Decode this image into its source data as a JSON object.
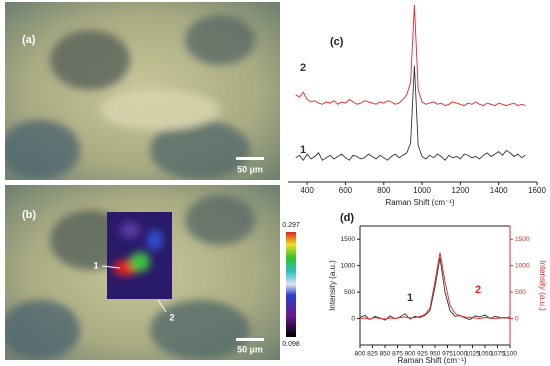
{
  "panels": [
    {
      "label": "(a)",
      "scale_bar": "50 µm"
    },
    {
      "label": "(b)",
      "scale_bar": "50 µm",
      "markers": [
        "1",
        "2"
      ],
      "colorbar": {
        "max": 0.297,
        "min": 0.098
      }
    }
  ],
  "chart_data": [
    {
      "type": "line",
      "panel": "(c)",
      "x_label": "Raman Shift (cm⁻¹)",
      "x": [
        340,
        360,
        380,
        400,
        420,
        440,
        460,
        480,
        500,
        520,
        540,
        560,
        580,
        600,
        620,
        640,
        660,
        680,
        700,
        720,
        740,
        760,
        780,
        800,
        820,
        840,
        860,
        880,
        900,
        920,
        940,
        960,
        980,
        1000,
        1020,
        1040,
        1060,
        1080,
        1100,
        1120,
        1140,
        1160,
        1180,
        1200,
        1220,
        1240,
        1260,
        1280,
        1300,
        1320,
        1340,
        1360,
        1380,
        1400,
        1420,
        1440,
        1460,
        1480,
        1500,
        1520,
        1540
      ],
      "xlim": [
        300,
        1600
      ],
      "xticks": [
        400,
        600,
        800,
        1000,
        1200,
        1400,
        1600
      ],
      "ylim": [
        0,
        150
      ],
      "series": [
        {
          "name": "1",
          "color": "#333333",
          "values": [
            20,
            22,
            18,
            23,
            19,
            21,
            24,
            18,
            20,
            22,
            19,
            21,
            23,
            20,
            18,
            22,
            21,
            19,
            20,
            23,
            21,
            19,
            22,
            20,
            18,
            21,
            23,
            20,
            22,
            24,
            32,
            96,
            30,
            21,
            19,
            22,
            20,
            23,
            21,
            18,
            22,
            20,
            21,
            19,
            23,
            22,
            20,
            21,
            19,
            22,
            24,
            21,
            23,
            25,
            22,
            26,
            24,
            21,
            23,
            20,
            22
          ]
        },
        {
          "name": "2",
          "color": "#e8262a",
          "values": [
            72,
            70,
            74,
            68,
            66,
            67,
            65,
            64,
            66,
            65,
            67,
            64,
            66,
            65,
            68,
            66,
            64,
            65,
            67,
            66,
            65,
            64,
            66,
            65,
            67,
            66,
            64,
            65,
            68,
            72,
            82,
            146,
            76,
            66,
            64,
            65,
            66,
            64,
            65,
            63,
            64,
            66,
            65,
            64,
            63,
            65,
            64,
            66,
            64,
            63,
            65,
            64,
            63,
            65,
            64,
            63,
            64,
            65,
            63,
            64,
            63
          ]
        }
      ]
    },
    {
      "type": "line",
      "panel": "(d)",
      "x_label": "Raman Shift (cm⁻¹)",
      "y_label": "Intensity (a.u.)",
      "y2_label": "Intensity (a.u.)",
      "x": [
        800,
        810,
        820,
        830,
        840,
        850,
        860,
        870,
        880,
        890,
        900,
        910,
        920,
        930,
        940,
        950,
        960,
        970,
        980,
        990,
        1000,
        1010,
        1020,
        1030,
        1040,
        1050,
        1060,
        1070,
        1080,
        1090,
        1100
      ],
      "xlim": [
        800,
        1100
      ],
      "xticks": [
        800,
        825,
        850,
        875,
        900,
        925,
        950,
        975,
        1000,
        1025,
        1050,
        1075,
        1100
      ],
      "ylim": [
        -500,
        1750
      ],
      "yticks": [
        0,
        500,
        1000,
        1500
      ],
      "y2lim": [
        -500,
        1750
      ],
      "y2ticks": [
        0,
        500,
        1000,
        1500
      ],
      "series": [
        {
          "name": "1",
          "color": "#333333",
          "values": [
            20,
            60,
            -20,
            40,
            10,
            -30,
            50,
            0,
            30,
            90,
            -10,
            40,
            20,
            60,
            150,
            600,
            1150,
            500,
            150,
            40,
            60,
            10,
            -20,
            50,
            30,
            70,
            0,
            40,
            20,
            10,
            30
          ]
        },
        {
          "name": "2",
          "color": "#e8262a",
          "axis": "y2",
          "values": [
            0,
            10,
            -10,
            20,
            0,
            -10,
            10,
            0,
            20,
            30,
            10,
            20,
            40,
            80,
            200,
            700,
            1250,
            700,
            250,
            100,
            50,
            30,
            20,
            10,
            0,
            20,
            10,
            0,
            10,
            20,
            0
          ]
        }
      ]
    }
  ]
}
